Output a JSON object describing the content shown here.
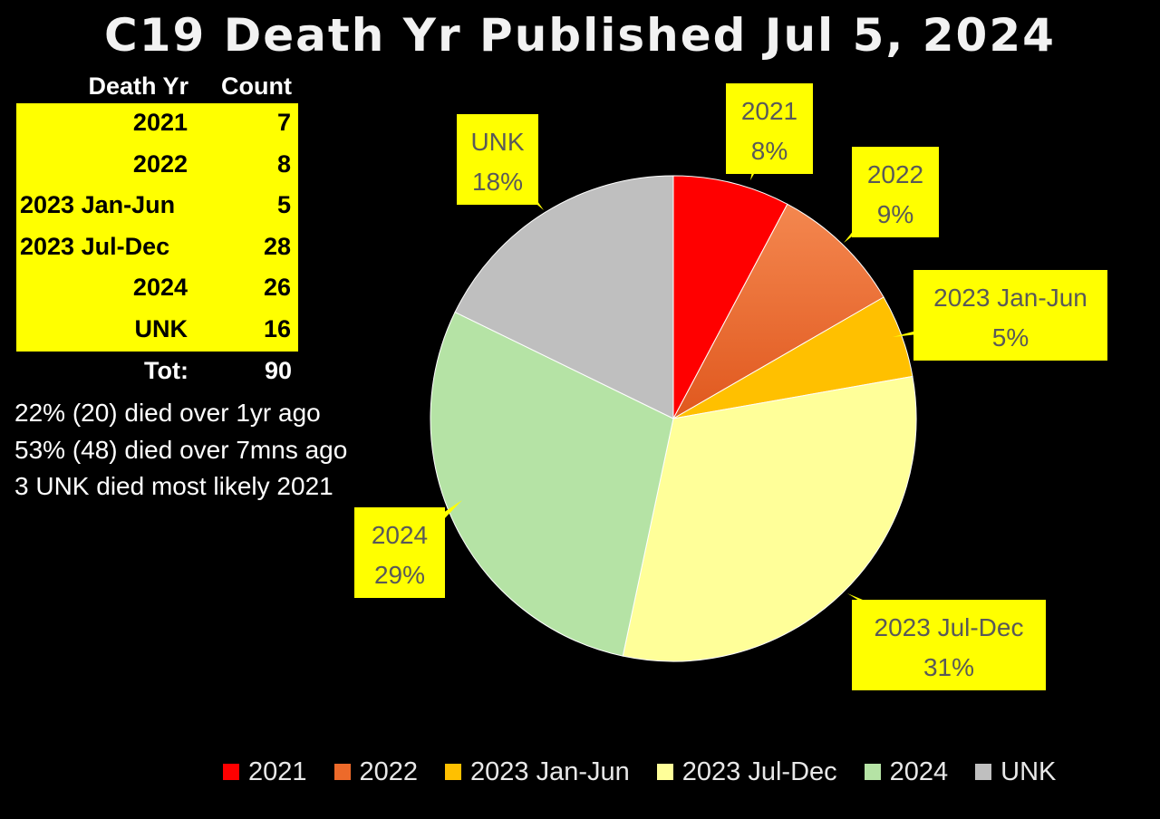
{
  "chart_data": {
    "type": "pie",
    "title": "C19 Death Yr Published Jul 5, 2024",
    "categories": [
      "2021",
      "2022",
      "2023 Jan-Jun",
      "2023 Jul-Dec",
      "2024",
      "UNK"
    ],
    "values": [
      7,
      8,
      5,
      28,
      26,
      16
    ],
    "percent_labels": [
      "8%",
      "9%",
      "5%",
      "31%",
      "29%",
      "18%"
    ],
    "colors": [
      "#ff0000",
      "#ed6a2a",
      "#ffc000",
      "#ffff99",
      "#b5e3a5",
      "#bfbfbf"
    ],
    "legend_position": "bottom"
  },
  "table": {
    "header": {
      "year": "Death Yr",
      "count": "Count"
    },
    "rows": [
      {
        "year": "2021",
        "count": "7"
      },
      {
        "year": "2022",
        "count": "8"
      },
      {
        "year": "2023 Jan-Jun",
        "count": "5"
      },
      {
        "year": "2023 Jul-Dec",
        "count": "28"
      },
      {
        "year": "2024",
        "count": "26"
      },
      {
        "year": "UNK",
        "count": "16"
      }
    ],
    "total_label": "Tot:",
    "total_value": "90"
  },
  "notes": [
    "22% (20) died over 1yr ago",
    "53% (48) died over 7mns ago",
    "3 UNK died most likely 2021"
  ]
}
